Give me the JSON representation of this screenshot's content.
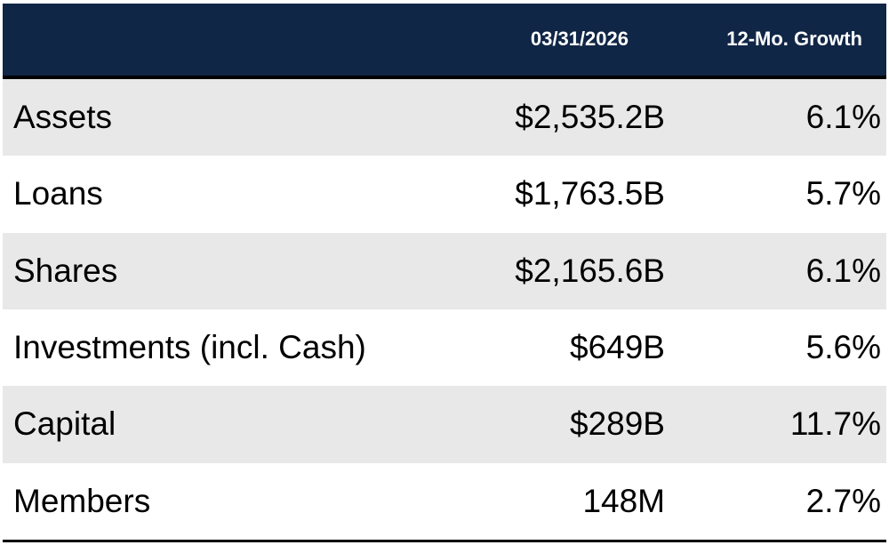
{
  "table": {
    "header": {
      "label_col": "",
      "date_col": "03/31/2026",
      "growth_col": "12-Mo. Growth"
    },
    "rows": [
      {
        "label": "Assets",
        "value": "$2,535.2B",
        "growth": "6.1%"
      },
      {
        "label": "Loans",
        "value": "$1,763.5B",
        "growth": "5.7%"
      },
      {
        "label": "Shares",
        "value": "$2,165.6B",
        "growth": "6.1%"
      },
      {
        "label": "Investments (incl. Cash)",
        "value": "$649B",
        "growth": "5.6%"
      },
      {
        "label": "Capital",
        "value": "$289B",
        "growth": "11.7%"
      },
      {
        "label": "Members",
        "value": "148M",
        "growth": "2.7%"
      }
    ]
  },
  "colors": {
    "header_bg": "#102646",
    "header_text": "#ffffff",
    "row_shaded": "#e8e8e8",
    "row_plain": "#ffffff",
    "rule": "#000000"
  }
}
